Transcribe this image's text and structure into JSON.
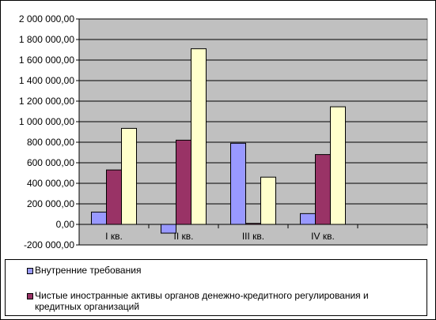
{
  "chart_data": {
    "type": "bar",
    "categories": [
      "I кв.",
      "II кв.",
      "III кв.",
      "IV кв."
    ],
    "series": [
      {
        "name": "Внутренние требования",
        "color": "#9999FF",
        "values": [
          120000,
          -85000,
          790000,
          105000
        ]
      },
      {
        "name": "Чистые иностранные активы органов денежно-кредитного регулирования и кредитных организаций",
        "color": "#993366",
        "values": [
          530000,
          820000,
          10000,
          680000
        ]
      },
      {
        "name": "",
        "color": "#FFFFCC",
        "values": [
          935000,
          1710000,
          460000,
          1145000
        ]
      }
    ],
    "ylim": [
      -200000,
      2000000
    ],
    "yticks": [
      -200000,
      0,
      200000,
      400000,
      600000,
      800000,
      1000000,
      1200000,
      1400000,
      1600000,
      1800000,
      2000000
    ],
    "ytick_labels": [
      "-200 000,00",
      "0,00",
      "200 000,00",
      "400 000,00",
      "600 000,00",
      "800 000,00",
      "1 000 000,00",
      "1 200 000,00",
      "1 400 000,00",
      "1 600 000,00",
      "1 800 000,00",
      "2 000 000,00"
    ],
    "plot_background": "#C0C0C0",
    "grid": true,
    "legend_position": "bottom",
    "title": "",
    "xlabel": "",
    "ylabel": ""
  },
  "legend": {
    "items": [
      {
        "label": "Внутренние требования"
      },
      {
        "label": "Чистые иностранные активы органов денежно-кредитного регулирования и кредитных организаций"
      }
    ]
  }
}
